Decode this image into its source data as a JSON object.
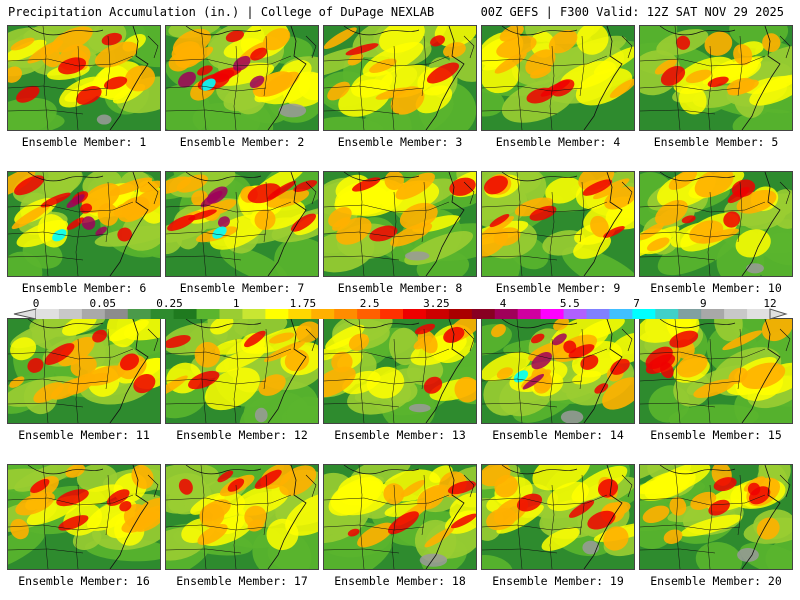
{
  "header": {
    "title": "Precipitation Accumulation (in.) | College of DuPage NEXLAB",
    "run_info": "00Z GEFS | F300 Valid: 12Z SAT NOV 29 2025"
  },
  "members": [
    {
      "label": "Ensemble Member: 1",
      "intensity": 0.75
    },
    {
      "label": "Ensemble Member: 2",
      "intensity": 0.95
    },
    {
      "label": "Ensemble Member: 3",
      "intensity": 0.55
    },
    {
      "label": "Ensemble Member: 4",
      "intensity": 0.5
    },
    {
      "label": "Ensemble Member: 5",
      "intensity": 0.55
    },
    {
      "label": "Ensemble Member: 6",
      "intensity": 1.0
    },
    {
      "label": "Ensemble Member: 7",
      "intensity": 1.0
    },
    {
      "label": "Ensemble Member: 8",
      "intensity": 0.5
    },
    {
      "label": "Ensemble Member: 9",
      "intensity": 0.8
    },
    {
      "label": "Ensemble Member: 10",
      "intensity": 0.7
    },
    {
      "label": "Ensemble Member: 11",
      "intensity": 0.75
    },
    {
      "label": "Ensemble Member: 12",
      "intensity": 0.55
    },
    {
      "label": "Ensemble Member: 13",
      "intensity": 0.5
    },
    {
      "label": "Ensemble Member: 14",
      "intensity": 1.0
    },
    {
      "label": "Ensemble Member: 15",
      "intensity": 0.6
    },
    {
      "label": "Ensemble Member: 16",
      "intensity": 0.75
    },
    {
      "label": "Ensemble Member: 17",
      "intensity": 0.6
    },
    {
      "label": "Ensemble Member: 18",
      "intensity": 0.65
    },
    {
      "label": "Ensemble Member: 19",
      "intensity": 0.7
    },
    {
      "label": "Ensemble Member: 20",
      "intensity": 0.65
    }
  ],
  "colorbar": {
    "labels": [
      "0",
      "0.05",
      "0.25",
      "1",
      "1.75",
      "2.5",
      "3.25",
      "4",
      "5.5",
      "7",
      "9",
      "12"
    ],
    "colors": [
      "#e0e0e0",
      "#c8c8c8",
      "#a9a9a9",
      "#8c8c8c",
      "#4a9a4a",
      "#2e8b2e",
      "#1f7a1f",
      "#5ab52e",
      "#9acd32",
      "#c8e632",
      "#ffff00",
      "#ffd700",
      "#ffb000",
      "#ff8c00",
      "#ff6000",
      "#ff3000",
      "#ee0000",
      "#cc0000",
      "#aa0000",
      "#880022",
      "#a0005a",
      "#d000a0",
      "#ff00ff",
      "#b060ff",
      "#8080ff",
      "#40c0ff",
      "#00ffff",
      "#40d0c8",
      "#80a0a0",
      "#a8a8a8",
      "#c8c8c8",
      "#e0e0e0"
    ]
  }
}
